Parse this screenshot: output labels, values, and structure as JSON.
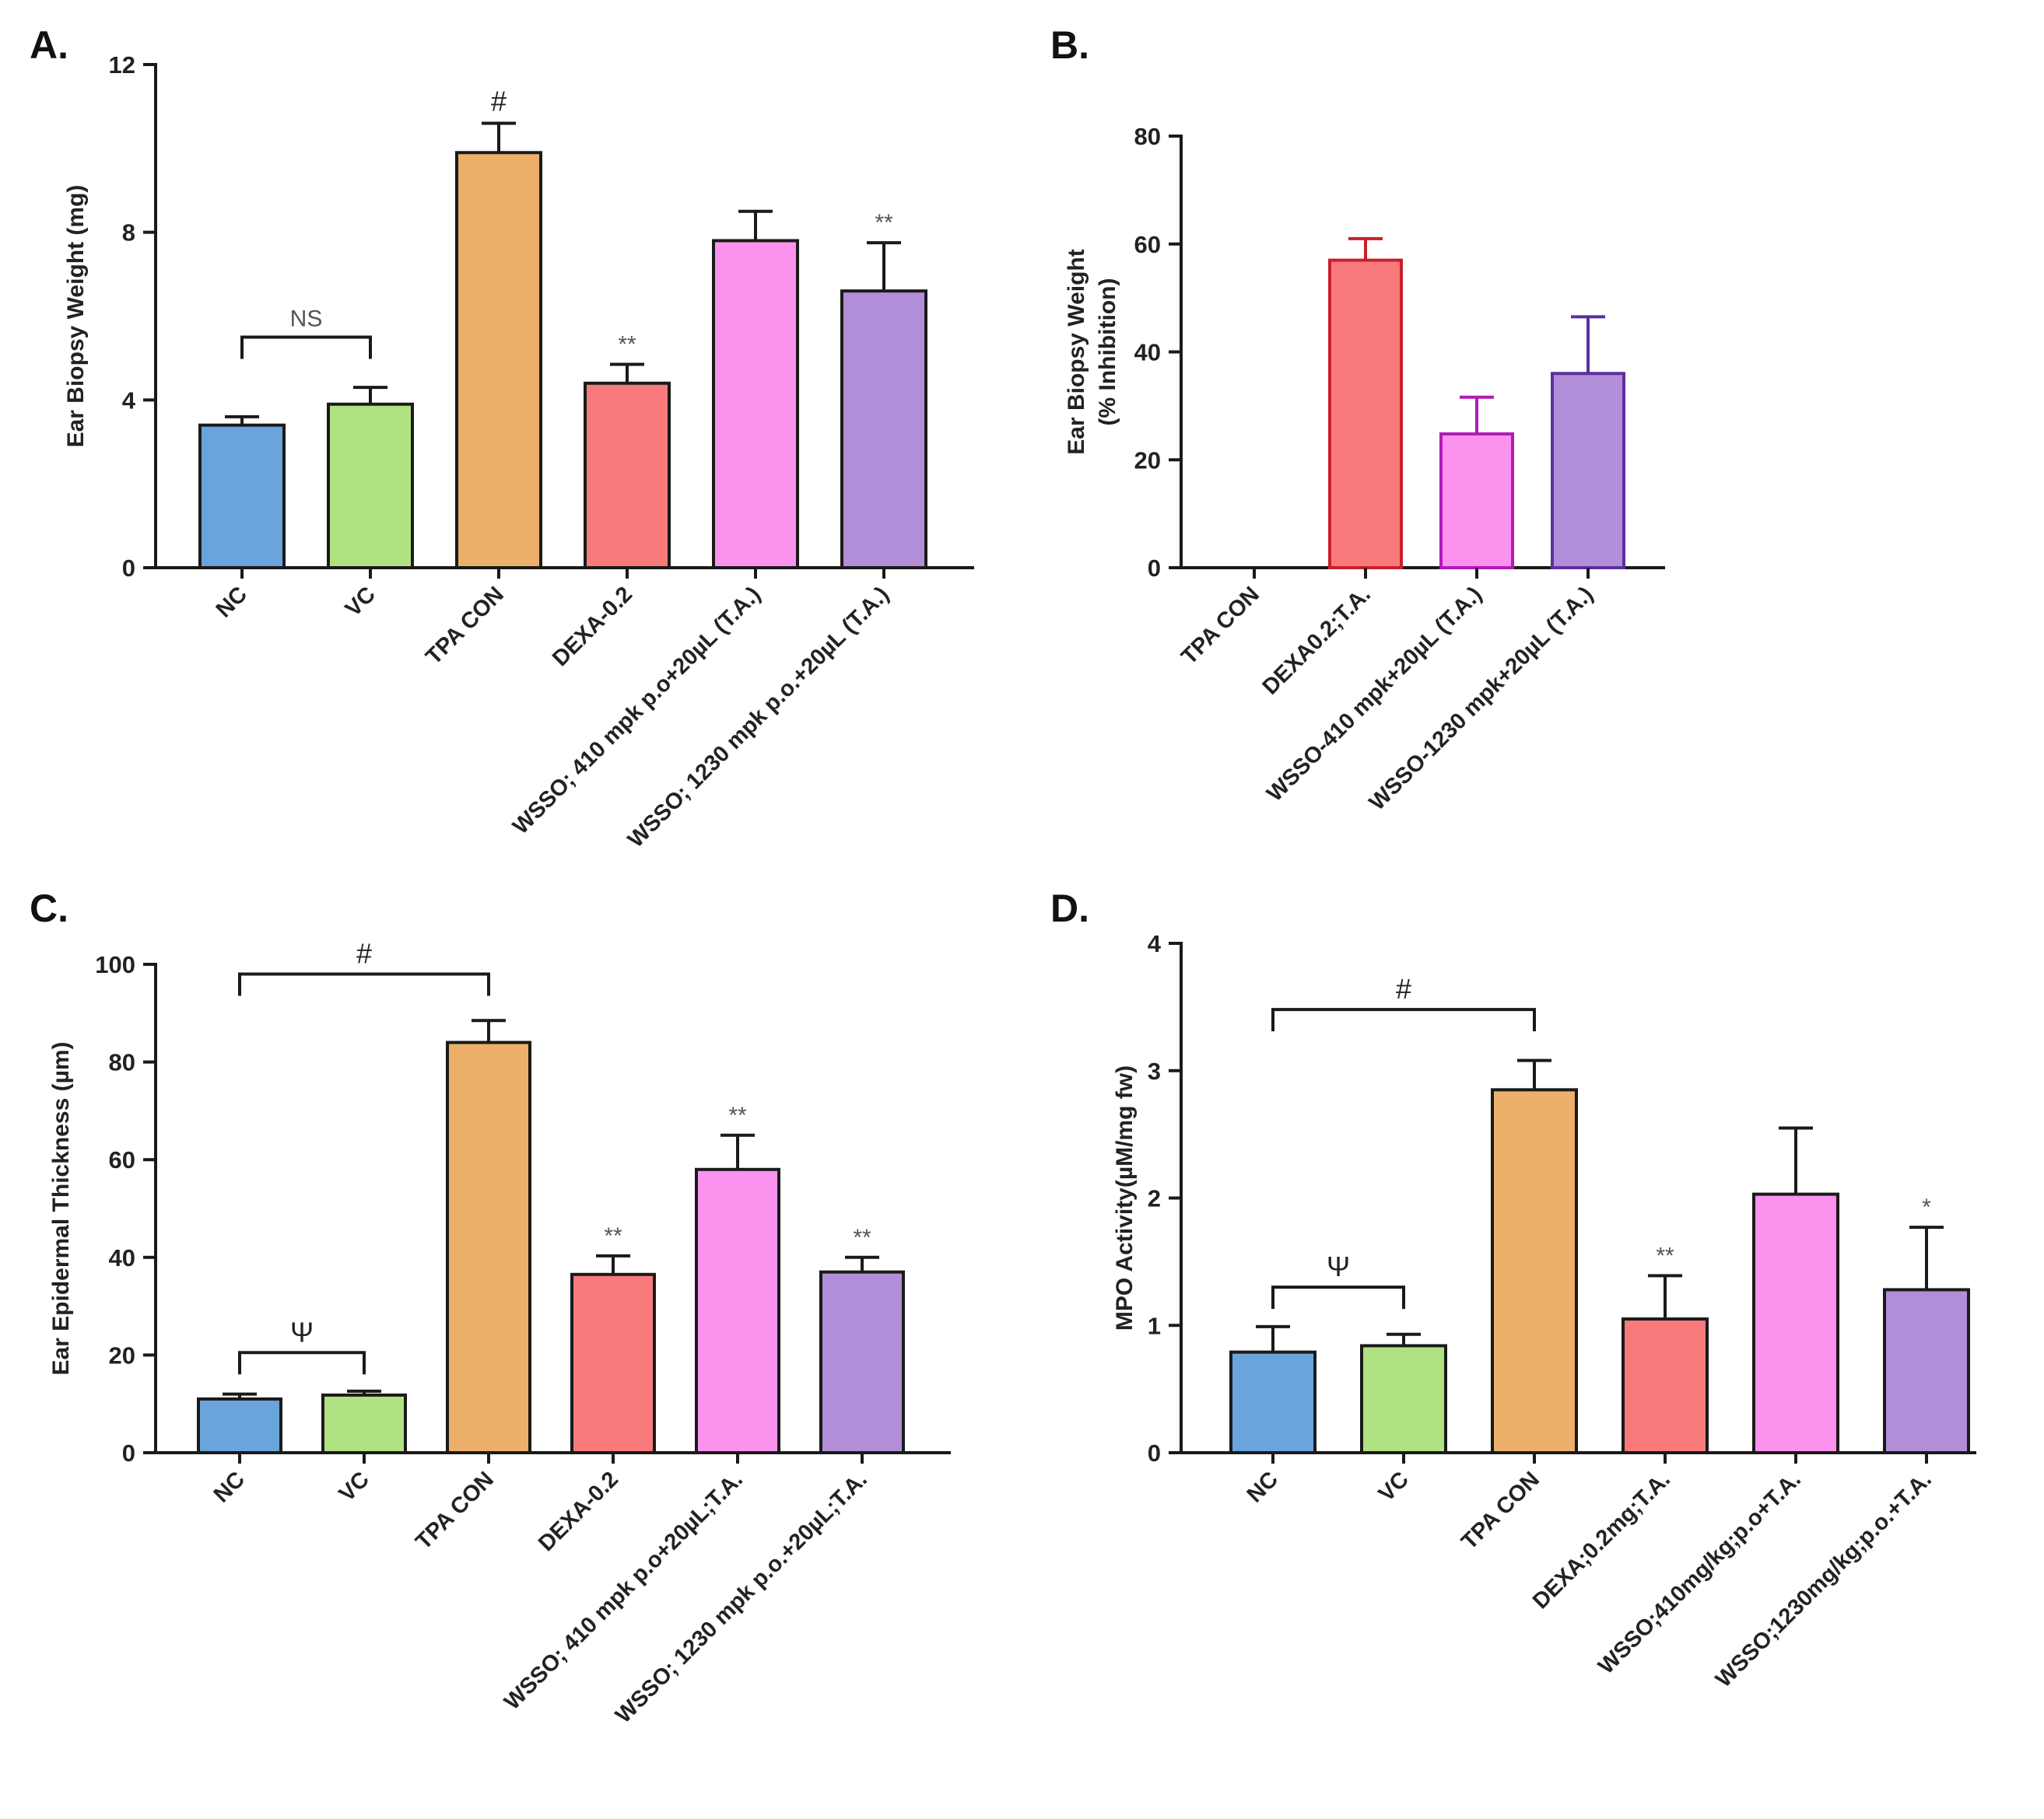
{
  "chart_data": [
    {
      "panel": "A.",
      "type": "bar",
      "ylabel": "Ear Biopsy Weight (mg)",
      "ylim": [
        0,
        12
      ],
      "yticks": [
        "0",
        "4",
        "8",
        "12"
      ],
      "categories": [
        "NC",
        "VC",
        "TPA CON",
        "DEXA-0.2",
        "WSSO; 410 mpk p.o+20µL (T.A.)",
        "WSSO; 1230 mpk p.o.+20µL (T.A.)"
      ],
      "values": [
        3.4,
        3.9,
        9.9,
        4.4,
        7.8,
        6.6
      ],
      "errors": [
        0.2,
        0.4,
        0.7,
        0.45,
        0.7,
        1.15
      ],
      "colors": [
        "#6aa4dc",
        "#b0e282",
        "#ecb06a",
        "#f87a7c",
        "#fb92ee",
        "#b28ed9"
      ],
      "edge_colors": [
        "#1a1a1a",
        "#1a1a1a",
        "#1a1a1a",
        "#1a1a1a",
        "#1a1a1a",
        "#1a1a1a"
      ],
      "bar_annotations": [
        "",
        "",
        "#",
        "**",
        "",
        "**"
      ],
      "brackets": [
        {
          "from": 0,
          "to": 1,
          "label": "NS",
          "level": 5.5
        }
      ]
    },
    {
      "panel": "B.",
      "type": "bar",
      "ylabel": "Ear Biopsy Weight",
      "ylabel2": "(% Inhibition)",
      "ylim": [
        0,
        80
      ],
      "yticks": [
        "0",
        "20",
        "40",
        "60",
        "80"
      ],
      "categories": [
        "TPA CON",
        "DEXA0.2;T.A.",
        "WSSO-410 mpk+20µL (T.A.)",
        "WSSO-1230 mpk+20µL (T.A.)"
      ],
      "values": [
        0,
        57,
        24.8,
        36
      ],
      "errors": [
        0,
        4,
        6.8,
        10.5
      ],
      "colors": [
        "#ffffff",
        "#f87a7c",
        "#fb92ee",
        "#b28ed9"
      ],
      "edge_colors": [
        "#1a1a1a",
        "#c8202b",
        "#b21ab8",
        "#5d2fa0"
      ],
      "bar_annotations": [
        "",
        "",
        "",
        ""
      ],
      "brackets": []
    },
    {
      "panel": "C.",
      "type": "bar",
      "ylabel": "Ear Epidermal Thickness (µm)",
      "ylim": [
        0,
        100
      ],
      "yticks": [
        "0",
        "20",
        "40",
        "60",
        "80",
        "100"
      ],
      "categories": [
        "NC",
        "VC",
        "TPA CON",
        "DEXA-0.2",
        "WSSO; 410 mpk p.o+20µL;T.A.",
        "WSSO; 1230 mpk p.o.+20µL;T.A."
      ],
      "values": [
        11,
        11.8,
        84,
        36.5,
        58,
        37
      ],
      "errors": [
        1,
        0.8,
        4.5,
        3.8,
        7,
        3
      ],
      "colors": [
        "#6aa4dc",
        "#b0e282",
        "#ecb06a",
        "#f87a7c",
        "#fb92ee",
        "#b28ed9"
      ],
      "edge_colors": [
        "#1a1a1a",
        "#1a1a1a",
        "#1a1a1a",
        "#1a1a1a",
        "#1a1a1a",
        "#1a1a1a"
      ],
      "bar_annotations": [
        "",
        "",
        "",
        "**",
        "**",
        "**"
      ],
      "brackets": [
        {
          "from": 0,
          "to": 2,
          "label": "#",
          "level": 98
        },
        {
          "from": 0,
          "to": 1,
          "label": "Ψ",
          "level": 20.5
        }
      ]
    },
    {
      "panel": "D.",
      "type": "bar",
      "ylabel": "MPO Activity(µM/mg fw)",
      "ylim": [
        0,
        4
      ],
      "yticks": [
        "0",
        "1",
        "2",
        "3",
        "4"
      ],
      "categories": [
        "NC",
        "VC",
        "TPA CON",
        "DEXA;0.2mg;T.A.",
        "WSSO;410mg/kg;p.o+T.A.",
        "WSSO;1230mg/kg;p.o.+T.A."
      ],
      "values": [
        0.79,
        0.84,
        2.85,
        1.05,
        2.03,
        1.28
      ],
      "errors": [
        0.2,
        0.09,
        0.23,
        0.34,
        0.52,
        0.49
      ],
      "colors": [
        "#6aa4dc",
        "#b0e282",
        "#ecb06a",
        "#f87a7c",
        "#fb92ee",
        "#b28ed9"
      ],
      "edge_colors": [
        "#1a1a1a",
        "#1a1a1a",
        "#1a1a1a",
        "#1a1a1a",
        "#1a1a1a",
        "#1a1a1a"
      ],
      "bar_annotations": [
        "",
        "",
        "",
        "**",
        "",
        "*"
      ],
      "brackets": [
        {
          "from": 0,
          "to": 2,
          "label": "#",
          "level": 3.48
        },
        {
          "from": 0,
          "to": 1,
          "label": "Ψ",
          "level": 1.3
        }
      ]
    }
  ]
}
